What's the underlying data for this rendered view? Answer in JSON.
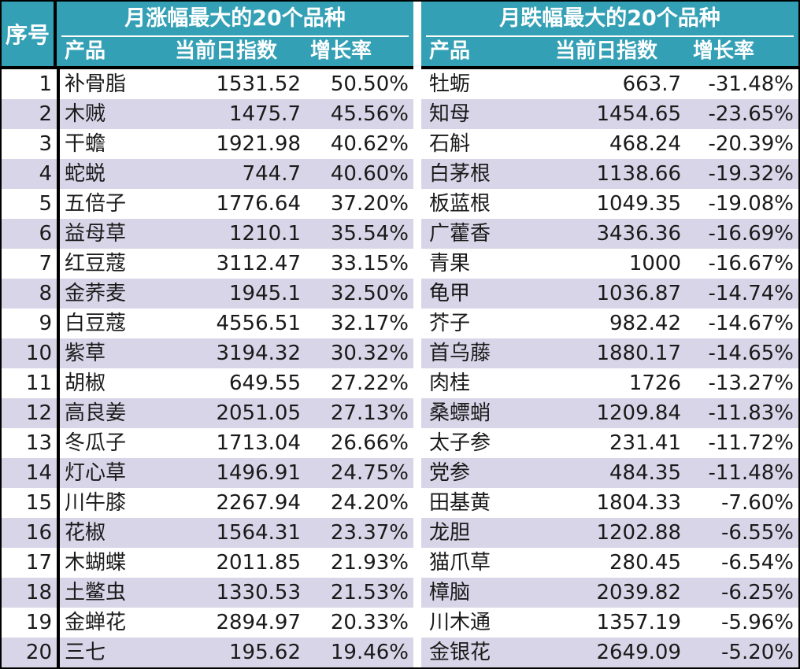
{
  "header": {
    "seq_label": "序号",
    "left_title": "月涨幅最大的20个品种",
    "right_title": "月跌幅最大的20个品种",
    "col_product": "产品",
    "col_index": "当前日指数",
    "col_rate": "增长率"
  },
  "rows": [
    {
      "seq": "1",
      "up_name": "补骨脂",
      "up_index": "1531.52",
      "up_rate": "50.50%",
      "down_name": "牡蛎",
      "down_index": "663.7",
      "down_rate": "-31.48%"
    },
    {
      "seq": "2",
      "up_name": "木贼",
      "up_index": "1475.7",
      "up_rate": "45.56%",
      "down_name": "知母",
      "down_index": "1454.65",
      "down_rate": "-23.65%"
    },
    {
      "seq": "3",
      "up_name": "干蟾",
      "up_index": "1921.98",
      "up_rate": "40.62%",
      "down_name": "石斛",
      "down_index": "468.24",
      "down_rate": "-20.39%"
    },
    {
      "seq": "4",
      "up_name": "蛇蜕",
      "up_index": "744.7",
      "up_rate": "40.60%",
      "down_name": "白茅根",
      "down_index": "1138.66",
      "down_rate": "-19.32%"
    },
    {
      "seq": "5",
      "up_name": "五倍子",
      "up_index": "1776.64",
      "up_rate": "37.20%",
      "down_name": "板蓝根",
      "down_index": "1049.35",
      "down_rate": "-19.08%"
    },
    {
      "seq": "6",
      "up_name": "益母草",
      "up_index": "1210.1",
      "up_rate": "35.54%",
      "down_name": "广藿香",
      "down_index": "3436.36",
      "down_rate": "-16.69%"
    },
    {
      "seq": "7",
      "up_name": "红豆蔻",
      "up_index": "3112.47",
      "up_rate": "33.15%",
      "down_name": "青果",
      "down_index": "1000",
      "down_rate": "-16.67%"
    },
    {
      "seq": "8",
      "up_name": "金荞麦",
      "up_index": "1945.1",
      "up_rate": "32.50%",
      "down_name": "龟甲",
      "down_index": "1036.87",
      "down_rate": "-14.74%"
    },
    {
      "seq": "9",
      "up_name": "白豆蔻",
      "up_index": "4556.51",
      "up_rate": "32.17%",
      "down_name": "芥子",
      "down_index": "982.42",
      "down_rate": "-14.67%"
    },
    {
      "seq": "10",
      "up_name": "紫草",
      "up_index": "3194.32",
      "up_rate": "30.32%",
      "down_name": "首乌藤",
      "down_index": "1880.17",
      "down_rate": "-14.65%"
    },
    {
      "seq": "11",
      "up_name": "胡椒",
      "up_index": "649.55",
      "up_rate": "27.22%",
      "down_name": "肉桂",
      "down_index": "1726",
      "down_rate": "-13.27%"
    },
    {
      "seq": "12",
      "up_name": "高良姜",
      "up_index": "2051.05",
      "up_rate": "27.13%",
      "down_name": "桑螵蛸",
      "down_index": "1209.84",
      "down_rate": "-11.83%"
    },
    {
      "seq": "13",
      "up_name": "冬瓜子",
      "up_index": "1713.04",
      "up_rate": "26.66%",
      "down_name": "太子参",
      "down_index": "231.41",
      "down_rate": "-11.72%"
    },
    {
      "seq": "14",
      "up_name": "灯心草",
      "up_index": "1496.91",
      "up_rate": "24.75%",
      "down_name": "党参",
      "down_index": "484.35",
      "down_rate": "-11.48%"
    },
    {
      "seq": "15",
      "up_name": "川牛膝",
      "up_index": "2267.94",
      "up_rate": "24.20%",
      "down_name": "田基黄",
      "down_index": "1804.33",
      "down_rate": "-7.60%"
    },
    {
      "seq": "16",
      "up_name": "花椒",
      "up_index": "1564.31",
      "up_rate": "23.37%",
      "down_name": "龙胆",
      "down_index": "1202.88",
      "down_rate": "-6.55%"
    },
    {
      "seq": "17",
      "up_name": "木蝴蝶",
      "up_index": "2011.85",
      "up_rate": "21.93%",
      "down_name": "猫爪草",
      "down_index": "280.45",
      "down_rate": "-6.54%"
    },
    {
      "seq": "18",
      "up_name": "土鳖虫",
      "up_index": "1330.53",
      "up_rate": "21.53%",
      "down_name": "樟脑",
      "down_index": "2039.82",
      "down_rate": "-6.25%"
    },
    {
      "seq": "19",
      "up_name": "金蝉花",
      "up_index": "2894.97",
      "up_rate": "20.33%",
      "down_name": "川木通",
      "down_index": "1357.19",
      "down_rate": "-5.96%"
    },
    {
      "seq": "20",
      "up_name": "三七",
      "up_index": "195.62",
      "up_rate": "19.46%",
      "down_name": "金银花",
      "down_index": "2649.09",
      "down_rate": "-5.20%"
    }
  ]
}
